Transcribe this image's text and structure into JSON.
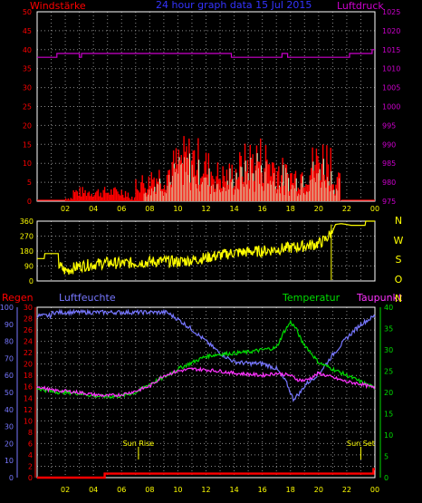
{
  "header": {
    "left_label": "Windstärke",
    "title": "24 hour graph data  15 Jul 2015",
    "right_label": "Luftdruck"
  },
  "colors": {
    "background": "#000000",
    "frame": "#ffffff",
    "grid": "#8a8a8a",
    "wind_gust": "#ff0000",
    "wind_avg": "#ccffcc",
    "pressure": "#cc00cc",
    "direction": "#ffff00",
    "rain": "#ff0000",
    "humidity": "#7777ff",
    "temperature": "#00dd00",
    "dewpoint": "#ff33ff",
    "title": "#3333ff"
  },
  "chart_data": [
    {
      "type": "line",
      "x_ticks": [
        "02",
        "04",
        "06",
        "08",
        "10",
        "12",
        "14",
        "16",
        "18",
        "20",
        "22",
        "00"
      ],
      "y_left_ticks": [
        "0",
        "5",
        "10",
        "15",
        "20",
        "25",
        "30",
        "35",
        "40",
        "45",
        "50"
      ],
      "y_right_ticks": [
        "975",
        "980",
        "985",
        "990",
        "995",
        "1000",
        "1005",
        "1010",
        "1015",
        "1020",
        "1025"
      ],
      "ylim_left": [
        0,
        50
      ],
      "ylim_right": [
        975,
        1025
      ],
      "xlim": [
        0,
        24
      ],
      "grid": true,
      "series": [
        {
          "name": "Luftdruck",
          "axis": "right",
          "points": [
            [
              0,
              1013
            ],
            [
              1.4,
              1013
            ],
            [
              1.4,
              1014
            ],
            [
              3.0,
              1014
            ],
            [
              3.0,
              1013
            ],
            [
              3.15,
              1013
            ],
            [
              3.15,
              1014
            ],
            [
              13.8,
              1014
            ],
            [
              13.8,
              1013
            ],
            [
              17.4,
              1013
            ],
            [
              17.4,
              1014
            ],
            [
              17.8,
              1014
            ],
            [
              17.8,
              1013
            ],
            [
              22.2,
              1013
            ],
            [
              22.2,
              1014
            ],
            [
              23.8,
              1014
            ],
            [
              23.8,
              1015
            ],
            [
              24,
              1015
            ]
          ]
        }
      ],
      "wind_note": "Windstärke gusts and averages shown as dense bars: near 0 until about 02h, sporadic 0–7 until 07h, then mostly 5–15 (peaks near 18) from 08h to 21h, dropping to 0 after about 21:30."
    },
    {
      "type": "line",
      "y_ticks": [
        "0",
        "90",
        "180",
        "270",
        "360"
      ],
      "ylim": [
        0,
        360
      ],
      "xlim": [
        0,
        24
      ],
      "side_labels": [
        "N",
        "W",
        "S",
        "O",
        "N"
      ],
      "series": [
        {
          "name": "",
          "points": [
            [
              0,
              135
            ],
            [
              0.5,
              135
            ],
            [
              0.5,
              165
            ],
            [
              1.5,
              165
            ],
            [
              1.5,
              95
            ],
            [
              2,
              60
            ],
            [
              3,
              90
            ],
            [
              4,
              100
            ],
            [
              5,
              110
            ],
            [
              6,
              105
            ],
            [
              7,
              110
            ],
            [
              8,
              115
            ],
            [
              9,
              120
            ],
            [
              10,
              115
            ],
            [
              11,
              125
            ],
            [
              12,
              140
            ],
            [
              13,
              155
            ],
            [
              14,
              170
            ],
            [
              15,
              175
            ],
            [
              16,
              180
            ],
            [
              17,
              190
            ],
            [
              18,
              200
            ],
            [
              19,
              210
            ],
            [
              20,
              225
            ],
            [
              20.5,
              250
            ],
            [
              21,
              300
            ],
            [
              21.2,
              340
            ],
            [
              21.6,
              345
            ],
            [
              22,
              340
            ],
            [
              22.3,
              335
            ],
            [
              23.3,
              335
            ],
            [
              23.3,
              360
            ],
            [
              24,
              360
            ]
          ]
        }
      ]
    },
    {
      "type": "line",
      "labels": {
        "rain": "Regen",
        "humidity": "Luftfeuchte",
        "temperature": "Temperatur",
        "dewpoint": "Taupunkt"
      },
      "x_ticks": [
        "02",
        "04",
        "06",
        "08",
        "10",
        "12",
        "14",
        "16",
        "18",
        "20",
        "22",
        "00"
      ],
      "y_rain_ticks": [
        "0",
        "2",
        "4",
        "6",
        "8",
        "10",
        "12",
        "14",
        "16",
        "18",
        "20",
        "22",
        "24",
        "26",
        "28",
        "30"
      ],
      "y_humidity_ticks": [
        "0",
        "10",
        "20",
        "30",
        "40",
        "50",
        "60",
        "70",
        "80",
        "90",
        "100"
      ],
      "y_temp_ticks": [
        "0",
        "5",
        "10",
        "15",
        "20",
        "25",
        "30",
        "35",
        "40"
      ],
      "ylim_humidity": [
        0,
        100
      ],
      "ylim_temp": [
        0,
        40
      ],
      "ylim_rain": [
        0,
        30
      ],
      "xlim": [
        0,
        24
      ],
      "annotations": [
        {
          "text": "Sun Rise",
          "x": 7.2
        },
        {
          "text": "Sun Set",
          "x": 23.0
        }
      ],
      "series": [
        {
          "name": "Luftfeuchte",
          "axis": "humidity",
          "points": [
            [
              0,
              95
            ],
            [
              1,
              95
            ],
            [
              1.1,
              97
            ],
            [
              9.2,
              97
            ],
            [
              10,
              93
            ],
            [
              11,
              87
            ],
            [
              12,
              80
            ],
            [
              13,
              73
            ],
            [
              14,
              68
            ],
            [
              15,
              67
            ],
            [
              16,
              67
            ],
            [
              17,
              64
            ],
            [
              17.7,
              56
            ],
            [
              18.2,
              46
            ],
            [
              18.7,
              50
            ],
            [
              19.1,
              55
            ],
            [
              19.6,
              58
            ],
            [
              20.2,
              63
            ],
            [
              21,
              72
            ],
            [
              22,
              82
            ],
            [
              23,
              90
            ],
            [
              24,
              95
            ]
          ]
        },
        {
          "name": "Temperatur",
          "axis": "temp",
          "points": [
            [
              0,
              21
            ],
            [
              1,
              20.2
            ],
            [
              2,
              20
            ],
            [
              3,
              19.8
            ],
            [
              4,
              19.2
            ],
            [
              5,
              19
            ],
            [
              6,
              19.2
            ],
            [
              7,
              20
            ],
            [
              8,
              22
            ],
            [
              9,
              23.5
            ],
            [
              10,
              25.5
            ],
            [
              11,
              27
            ],
            [
              12,
              28.5
            ],
            [
              13,
              29
            ],
            [
              14,
              29.2
            ],
            [
              15,
              29.5
            ],
            [
              16,
              30
            ],
            [
              17,
              30.5
            ],
            [
              17.5,
              34
            ],
            [
              18,
              36.5
            ],
            [
              18.4,
              35
            ],
            [
              18.8,
              32
            ],
            [
              19.3,
              30
            ],
            [
              20,
              27
            ],
            [
              21,
              25.5
            ],
            [
              22,
              24
            ],
            [
              23,
              22.5
            ],
            [
              24,
              21
            ]
          ]
        },
        {
          "name": "Taupunkt",
          "axis": "temp",
          "points": [
            [
              0,
              21.5
            ],
            [
              1,
              20.5
            ],
            [
              2,
              20.3
            ],
            [
              3,
              20
            ],
            [
              4,
              19.5
            ],
            [
              5,
              19.2
            ],
            [
              6,
              19.5
            ],
            [
              7,
              20.3
            ],
            [
              8,
              21.5
            ],
            [
              9,
              24
            ],
            [
              10,
              25
            ],
            [
              11,
              25.5
            ],
            [
              12,
              25.3
            ],
            [
              13,
              25
            ],
            [
              14,
              24.5
            ],
            [
              15,
              24.3
            ],
            [
              16,
              24
            ],
            [
              17,
              24.5
            ],
            [
              18,
              24
            ],
            [
              18.5,
              23
            ],
            [
              19,
              22.8
            ],
            [
              19.5,
              23.5
            ],
            [
              20,
              24.5
            ],
            [
              21,
              23.5
            ],
            [
              22,
              22.5
            ],
            [
              23,
              22
            ],
            [
              24,
              21
            ]
          ]
        },
        {
          "name": "Regen",
          "axis": "rain",
          "points": [
            [
              0,
              0
            ],
            [
              4.8,
              0
            ],
            [
              4.8,
              0.7
            ],
            [
              23.9,
              0.7
            ],
            [
              23.9,
              1.5
            ],
            [
              24,
              1.5
            ]
          ]
        }
      ]
    }
  ]
}
